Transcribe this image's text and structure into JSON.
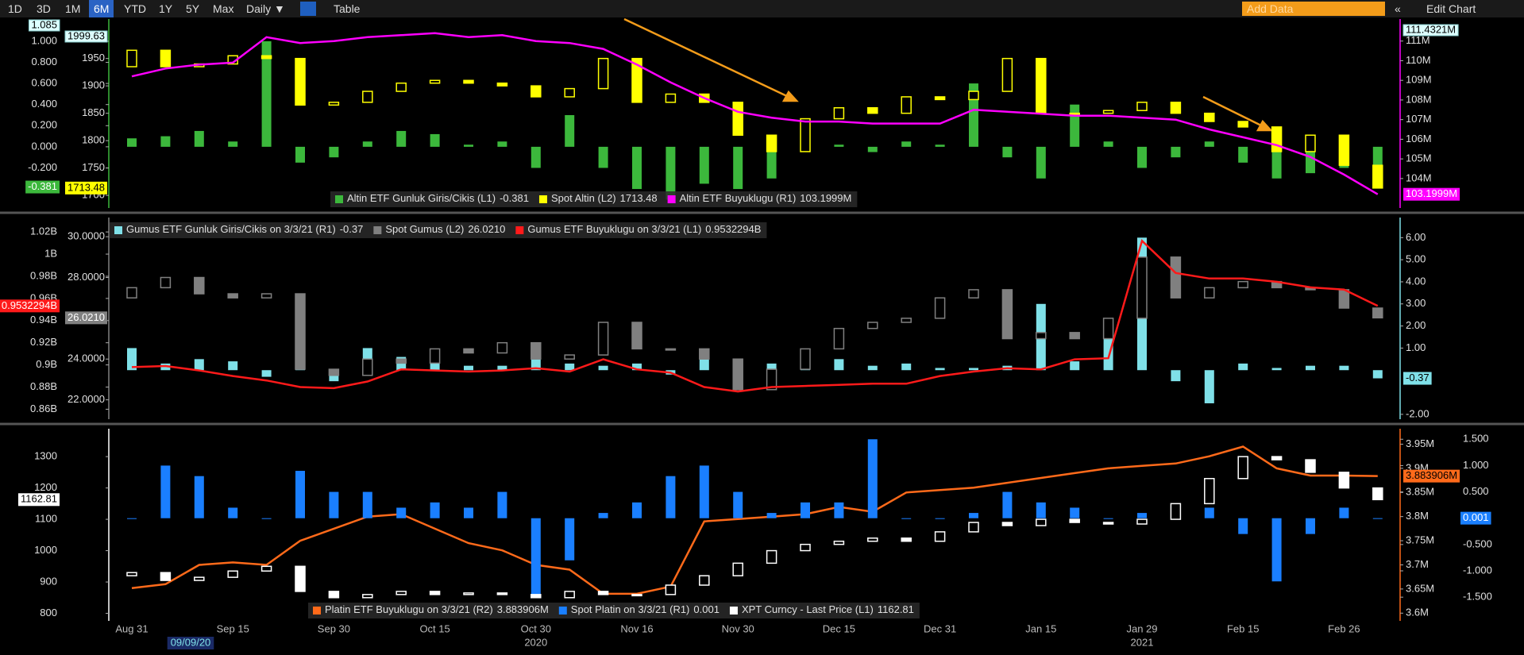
{
  "toolbar": {
    "ranges": [
      "1D",
      "3D",
      "1M",
      "6M",
      "YTD",
      "1Y",
      "5Y",
      "Max"
    ],
    "active": "6M",
    "frequency": "Daily ▼",
    "table": "Table",
    "add_data": "Add Data",
    "collapse": "«",
    "edit": "Edit Chart"
  },
  "chart_data": [
    {
      "type": "combo",
      "axis_sides": {
        "y": "left",
        "y3": "left",
        "y2": "right"
      },
      "ylim": [
        -0.58,
        1.21
      ],
      "yticks": [
        {
          "value": -0.2,
          "label": "-0.200"
        },
        {
          "value": 0,
          "label": "0.000"
        },
        {
          "value": 0.2,
          "label": "0.200"
        },
        {
          "value": 0.4,
          "label": "0.400"
        },
        {
          "value": 0.6,
          "label": "0.600"
        },
        {
          "value": 0.8,
          "label": "0.800"
        },
        {
          "value": 1,
          "label": "1.000"
        }
      ],
      "y3lim": [
        1677,
        2022
      ],
      "y3ticks": [
        1700,
        1750,
        1800,
        1850,
        1900,
        1950
      ],
      "y2lim": [
        102.5,
        112.12
      ],
      "y2ticks": [
        {
          "value": 104,
          "label": "104M"
        },
        {
          "value": 105,
          "label": "105M"
        },
        {
          "value": 106,
          "label": "106M"
        },
        {
          "value": 107,
          "label": "107M"
        },
        {
          "value": 108,
          "label": "108M"
        },
        {
          "value": 109,
          "label": "109M"
        },
        {
          "value": 110,
          "label": "110M"
        },
        {
          "value": 111,
          "label": "111M"
        }
      ],
      "top_labels": {
        "y": "1.085",
        "y3": "1999.63",
        "y2": "111.4321M"
      },
      "series": [
        {
          "name": "Altin ETF Gunluk Giris/Cikis (L1)",
          "type": "bar",
          "axis": "y",
          "color": "#3cb83c",
          "last_label": "-0.381",
          "values": [
            0.08,
            0.1,
            0.15,
            0.05,
            1.0,
            -0.15,
            -0.1,
            0.05,
            0.15,
            0.12,
            0.02,
            0.05,
            -0.2,
            0.3,
            -0.2,
            -0.4,
            -0.5,
            -0.35,
            -0.4,
            -0.3,
            -0.05,
            0.02,
            -0.05,
            0.05,
            0.02,
            0.6,
            -0.1,
            -0.3,
            0.4,
            0.05,
            -0.2,
            -0.1,
            0.05,
            -0.15,
            -0.3,
            -0.25,
            -0.2,
            -0.381
          ]
        },
        {
          "name": "Spot Altin (L2)",
          "type": "candlestick",
          "axis": "y3",
          "color": "#ffff00",
          "last_label": "1713.48",
          "open": [
            1935,
            1965,
            1935,
            1940,
            1955,
            1950,
            1865,
            1870,
            1890,
            1905,
            1910,
            1905,
            1900,
            1880,
            1895,
            1950,
            1870,
            1885,
            1870,
            1810,
            1780,
            1840,
            1860,
            1850,
            1880,
            1875,
            1890,
            1950,
            1850,
            1850,
            1855,
            1870,
            1850,
            1835,
            1825,
            1780,
            1810,
            1755
          ],
          "values": [
            1965,
            1935,
            1940,
            1955,
            1950,
            1865,
            1870,
            1890,
            1905,
            1910,
            1905,
            1900,
            1880,
            1895,
            1950,
            1870,
            1885,
            1870,
            1810,
            1780,
            1840,
            1860,
            1850,
            1880,
            1875,
            1890,
            1950,
            1850,
            1850,
            1855,
            1870,
            1850,
            1835,
            1825,
            1780,
            1810,
            1755,
            1713.48
          ]
        },
        {
          "name": "Altin ETF Buyuklugu (R1)",
          "type": "line",
          "axis": "y2",
          "color": "#ff00ff",
          "last_label": "103.1999M",
          "values": [
            109.2,
            109.6,
            109.8,
            109.9,
            111.2,
            110.9,
            111.0,
            111.2,
            111.3,
            111.4,
            111.2,
            111.3,
            111.0,
            110.9,
            110.6,
            109.8,
            108.9,
            108.1,
            107.4,
            107.1,
            106.9,
            106.9,
            106.8,
            106.8,
            106.8,
            107.5,
            107.4,
            107.3,
            107.2,
            107.2,
            107.1,
            107.0,
            106.5,
            106.1,
            105.7,
            105.1,
            104.2,
            103.1999
          ]
        }
      ]
    },
    {
      "type": "combo",
      "axis_sides": {
        "y": "left",
        "y3": "left",
        "y2": "right"
      },
      "ylim": [
        0.851,
        1.033
      ],
      "yticks": [
        {
          "value": 0.86,
          "label": "0.86B"
        },
        {
          "value": 0.88,
          "label": "0.88B"
        },
        {
          "value": 0.9,
          "label": "0.9B"
        },
        {
          "value": 0.92,
          "label": "0.92B"
        },
        {
          "value": 0.94,
          "label": "0.94B"
        },
        {
          "value": 0.96,
          "label": "0.96B"
        },
        {
          "value": 0.98,
          "label": "0.98B"
        },
        {
          "value": 1,
          "label": "1B"
        },
        {
          "value": 1.02,
          "label": "1.02B"
        }
      ],
      "y3lim": [
        21.05,
        30.94
      ],
      "y3ticks": [
        {
          "value": 22,
          "label": "22.0000"
        },
        {
          "value": 24,
          "label": "24.0000"
        },
        {
          "value": 28,
          "label": "28.0000"
        },
        {
          "value": 30,
          "label": "30.0000"
        }
      ],
      "y2lim": [
        -2.22,
        6.91
      ],
      "y2ticks": [
        {
          "value": -2,
          "label": "-2.00"
        },
        {
          "value": 1,
          "label": "1.00"
        },
        {
          "value": 2,
          "label": "2.00"
        },
        {
          "value": 3,
          "label": "3.00"
        },
        {
          "value": 4,
          "label": "4.00"
        },
        {
          "value": 5,
          "label": "5.00"
        },
        {
          "value": 6,
          "label": "6.00"
        }
      ],
      "series": [
        {
          "name": "Gumus ETF Gunluk Giris/Cikis on 3/3/21 (R1)",
          "type": "bar",
          "axis": "y2",
          "color": "#7fe0e8",
          "last_label": "-0.37",
          "values": [
            1.0,
            0.3,
            0.5,
            0.4,
            -0.3,
            0.5,
            -0.5,
            1.0,
            0.6,
            0.4,
            0.2,
            0.2,
            0.5,
            0.3,
            0.2,
            0.3,
            -0.2,
            0.5,
            0.1,
            0.3,
            0.2,
            0.5,
            0.2,
            0.3,
            0.1,
            0.1,
            0.2,
            3.0,
            0.4,
            1.5,
            6.0,
            -0.5,
            -1.5,
            0.3,
            0.1,
            0.2,
            0.2,
            -0.37
          ]
        },
        {
          "name": "Spot Gumus (L2)",
          "type": "candlestick",
          "axis": "y3",
          "color": "#808080",
          "last_label": "26.0210",
          "open": [
            27.0,
            27.5,
            28.0,
            27.2,
            27.0,
            27.2,
            23.5,
            23.2,
            24.0,
            23.8,
            24.5,
            24.3,
            24.8,
            24.0,
            24.2,
            25.8,
            24.5,
            24.5,
            24.0,
            22.5,
            23.5,
            24.5,
            25.5,
            25.8,
            26.0,
            27.0,
            27.4,
            25.0,
            25.3,
            25.0,
            26.0,
            29.0,
            27.0,
            27.5,
            27.8,
            27.5,
            27.4,
            26.5
          ],
          "values": [
            27.5,
            28.0,
            27.2,
            27.0,
            27.2,
            23.5,
            23.2,
            24.0,
            23.8,
            24.5,
            24.3,
            24.8,
            24.0,
            24.2,
            25.8,
            24.5,
            24.5,
            24.0,
            22.5,
            23.5,
            24.5,
            25.5,
            25.8,
            26.0,
            27.0,
            27.4,
            25.0,
            25.3,
            25.0,
            26.0,
            29.0,
            27.0,
            27.5,
            27.8,
            27.5,
            27.4,
            26.5,
            26.021
          ]
        },
        {
          "name": "Gumus ETF Buyuklugu on 3/3/21 (L1)",
          "type": "line",
          "axis": "y",
          "color": "#ff1a1a",
          "last_label": "0.9532294B",
          "values": [
            0.898,
            0.899,
            0.895,
            0.89,
            0.886,
            0.88,
            0.879,
            0.885,
            0.896,
            0.895,
            0.894,
            0.895,
            0.897,
            0.894,
            0.905,
            0.896,
            0.893,
            0.88,
            0.876,
            0.88,
            0.881,
            0.882,
            0.883,
            0.883,
            0.89,
            0.894,
            0.897,
            0.896,
            0.905,
            0.906,
            1.012,
            0.983,
            0.978,
            0.978,
            0.975,
            0.97,
            0.968,
            0.9532294
          ]
        }
      ]
    },
    {
      "type": "combo",
      "axis_sides": {
        "y": "left",
        "y2": "right",
        "y3": "right"
      },
      "categories": [
        "Aug 31",
        null,
        null,
        "Sep 15",
        null,
        null,
        "Sep 30",
        null,
        null,
        "Oct 15",
        null,
        null,
        "Oct 30",
        null,
        null,
        "Nov 16",
        null,
        null,
        "Nov 30",
        null,
        null,
        "Dec 15",
        null,
        null,
        "Dec 31",
        null,
        null,
        "Jan 15",
        null,
        null,
        "Jan 29",
        null,
        null,
        "Feb 15",
        null,
        null,
        "Feb 26",
        null
      ],
      "year_labels": [
        "2020",
        "2021"
      ],
      "cursor_label": "09/09/20",
      "ylim": [
        776,
        1389
      ],
      "yticks": [
        800,
        900,
        1000,
        1100,
        1200,
        1300
      ],
      "y2lim": [
        -1.95,
        1.7
      ],
      "y2ticks": [
        {
          "value": -1.5,
          "label": "-1.500"
        },
        {
          "value": -1,
          "label": "-1.000"
        },
        {
          "value": -0.5,
          "label": "-0.500"
        },
        {
          "value": 0.5,
          "label": "0.500"
        },
        {
          "value": 1,
          "label": "1.000"
        },
        {
          "value": 1.5,
          "label": "1.500"
        }
      ],
      "y3lim": [
        3.584,
        3.982
      ],
      "y3ticks": [
        {
          "value": 3.6,
          "label": "3.6M"
        },
        {
          "value": 3.65,
          "label": "3.65M"
        },
        {
          "value": 3.7,
          "label": "3.7M"
        },
        {
          "value": 3.75,
          "label": "3.75M"
        },
        {
          "value": 3.8,
          "label": "3.8M"
        },
        {
          "value": 3.85,
          "label": "3.85M"
        },
        {
          "value": 3.9,
          "label": "3.9M"
        },
        {
          "value": 3.95,
          "label": "3.95M"
        }
      ],
      "series": [
        {
          "name": "Platin ETF Buyuklugu on 3/3/21 (R2)",
          "type": "line",
          "axis": "y3",
          "color": "#ff6a1a",
          "last_label": "3.883906M",
          "values": [
            3.652,
            3.66,
            3.7,
            3.705,
            3.7,
            3.75,
            3.775,
            3.8,
            3.805,
            3.775,
            3.745,
            3.73,
            3.7,
            3.69,
            3.64,
            3.64,
            3.655,
            3.79,
            3.795,
            3.8,
            3.805,
            3.82,
            3.81,
            3.85,
            3.855,
            3.86,
            3.87,
            3.88,
            3.89,
            3.9,
            3.905,
            3.91,
            3.925,
            3.945,
            3.9,
            3.885,
            3.885,
            3.883906
          ]
        },
        {
          "name": "Spot Platin on 3/3/21 (R1)",
          "type": "bar",
          "axis": "y2",
          "color": "#1a7fff",
          "last_label": "0.001",
          "values": [
            0.0,
            1.0,
            0.8,
            0.2,
            0.0,
            0.9,
            0.5,
            0.5,
            0.2,
            0.3,
            0.2,
            0.5,
            -1.5,
            -0.8,
            0.1,
            0.3,
            0.8,
            1.0,
            0.5,
            0.1,
            0.3,
            0.3,
            1.5,
            0.0,
            0.0,
            0.1,
            0.5,
            0.3,
            0.2,
            0.0,
            0.1,
            0.1,
            0.2,
            -0.3,
            -1.2,
            -0.3,
            0.2,
            0.001
          ]
        },
        {
          "name": "XPT Curncy - Last Price (L1)",
          "type": "candlestick",
          "axis": "y",
          "color": "#ffffff",
          "last_label": "1162.81",
          "open": [
            920,
            930,
            905,
            915,
            935,
            950,
            870,
            850,
            860,
            870,
            860,
            865,
            860,
            850,
            870,
            860,
            860,
            890,
            920,
            960,
            1000,
            1020,
            1030,
            1040,
            1030,
            1060,
            1090,
            1080,
            1100,
            1090,
            1085,
            1100,
            1150,
            1230,
            1300,
            1290,
            1250,
            1200
          ],
          "values": [
            930,
            905,
            915,
            935,
            950,
            870,
            850,
            860,
            870,
            860,
            865,
            860,
            850,
            870,
            860,
            860,
            890,
            920,
            960,
            1000,
            1020,
            1030,
            1040,
            1030,
            1060,
            1090,
            1080,
            1100,
            1090,
            1085,
            1100,
            1150,
            1230,
            1300,
            1290,
            1250,
            1200,
            1162.81
          ]
        }
      ]
    }
  ]
}
